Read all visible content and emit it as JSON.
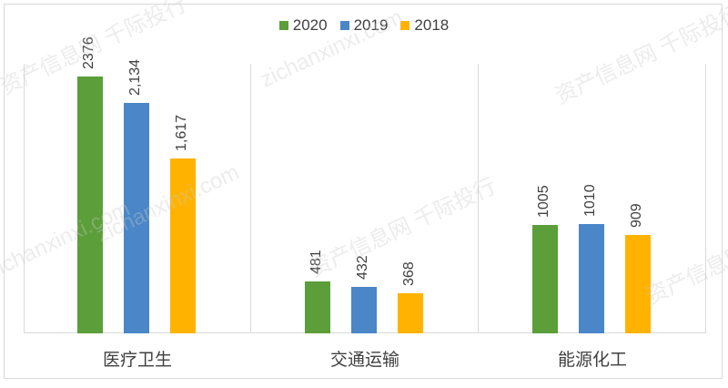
{
  "chart_data": {
    "type": "bar",
    "title": "",
    "xlabel": "",
    "ylabel": "",
    "categories": [
      "医疗卫生",
      "交通运输",
      "能源化工"
    ],
    "series": [
      {
        "name": "2020",
        "color": "#5b9e3a",
        "values": [
          2376,
          481,
          1005
        ],
        "labels": [
          "2376",
          "481",
          "1005"
        ]
      },
      {
        "name": "2019",
        "color": "#4a86c8",
        "values": [
          2134,
          432,
          1010
        ],
        "labels": [
          "2,134",
          "432",
          "1010"
        ]
      },
      {
        "name": "2018",
        "color": "#ffb300",
        "values": [
          1617,
          368,
          909
        ],
        "labels": [
          "1,617",
          "368",
          "909"
        ]
      }
    ],
    "ylim": [
      0,
      2500
    ],
    "grid": "vertical category separators",
    "legend_position": "top",
    "data_labels": "rotated vertical above bars"
  },
  "legend": [
    {
      "label": "2020",
      "color": "#5b9e3a"
    },
    {
      "label": "2019",
      "color": "#4a86c8"
    },
    {
      "label": "2018",
      "color": "#ffb300"
    }
  ],
  "watermark": {
    "cn": "资产信息网 千际投行",
    "en": "zichanxinxi.com"
  }
}
